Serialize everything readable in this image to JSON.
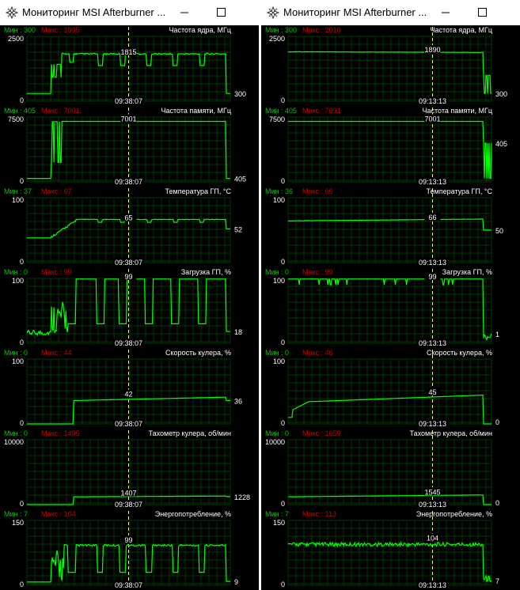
{
  "windows": [
    {
      "title": "Мониторинг MSI Afterburner ...",
      "panels": [
        {
          "min_label": "Мин : 300",
          "max_label": "Макс : 1995",
          "name": "Частота ядра, МГц",
          "top": "2500",
          "bottom": "0",
          "current": "300",
          "cursor_value": "1815",
          "time": "09:38:07"
        },
        {
          "min_label": "Мин : 405",
          "max_label": "Макс : 7001",
          "name": "Частота памяти, МГц",
          "top": "7500",
          "bottom": "0",
          "current": "405",
          "cursor_value": "7001",
          "time": "09:38:07"
        },
        {
          "min_label": "Мин : 37",
          "max_label": "Макс : 67",
          "name": "Температура ГП, °С",
          "top": "100",
          "bottom": "0",
          "current": "52",
          "cursor_value": "65",
          "time": "09:38:07"
        },
        {
          "min_label": "Мин : 0",
          "max_label": "Макс : 99",
          "name": "Загрузка ГП, %",
          "top": "100",
          "bottom": "0",
          "current": "18",
          "cursor_value": "99",
          "time": "09:38:07"
        },
        {
          "min_label": "Мин : 0",
          "max_label": "Макс : 44",
          "name": "Скорость кулера, %",
          "top": "100",
          "bottom": "0",
          "current": "36",
          "cursor_value": "42",
          "time": "09:38:07"
        },
        {
          "min_label": "Мин : 0",
          "max_label": "Макс : 1495",
          "name": "Тахометр кулера, об/мин",
          "top": "10000",
          "bottom": "0",
          "current": "1228",
          "cursor_value": "1407",
          "time": "09:38:07"
        },
        {
          "min_label": "Мин : 7",
          "max_label": "Макс : 104",
          "name": "Энергопотребление, %",
          "top": "150",
          "bottom": "0",
          "current": "9",
          "cursor_value": "99",
          "time": "09:38:07"
        }
      ]
    },
    {
      "title": "Мониторинг MSI Afterburner ...",
      "panels": [
        {
          "min_label": "Мин : 300",
          "max_label": "Макс : 2010",
          "name": "Частота ядра, МГц",
          "top": "2500",
          "bottom": "0",
          "current": "300",
          "cursor_value": "1890",
          "time": "09:13:13"
        },
        {
          "min_label": "Мин : 405",
          "max_label": "Макс : 7091",
          "name": "Частота памяти, МГц",
          "top": "7500",
          "bottom": "0",
          "current": "405",
          "cursor_value": "7001",
          "time": "09:13:13"
        },
        {
          "min_label": "Мин : 36",
          "max_label": "Макс : 66",
          "name": "Температура ГП, °С",
          "top": "100",
          "bottom": "0",
          "current": "50",
          "cursor_value": "66",
          "time": "09:13:13"
        },
        {
          "min_label": "Мин : 0",
          "max_label": "Макс : 99",
          "name": "Загрузка ГП, %",
          "top": "100",
          "bottom": "0",
          "current": "1",
          "cursor_value": "99",
          "time": "09:13:13"
        },
        {
          "min_label": "Мин : 0",
          "max_label": "Макс : 46",
          "name": "Скорость кулера, %",
          "top": "100",
          "bottom": "0",
          "current": "0",
          "cursor_value": "45",
          "time": "09:13:13"
        },
        {
          "min_label": "Мин : 0",
          "max_label": "Макс : 1659",
          "name": "Тахометр кулера, об/мин",
          "top": "10000",
          "bottom": "0",
          "current": "0",
          "cursor_value": "1545",
          "time": "09:13:13"
        },
        {
          "min_label": "Мин : 7",
          "max_label": "Макс : 113",
          "name": "Энергопотребление, %",
          "top": "150",
          "bottom": "0",
          "current": "7",
          "cursor_value": "104",
          "time": "09:13:13"
        }
      ]
    }
  ],
  "colors": {
    "min": "#00c800",
    "max": "#c80000",
    "line": "#00ff00",
    "grid": "#003800",
    "label": "#ffffff",
    "cursor": "#ffff80"
  }
}
